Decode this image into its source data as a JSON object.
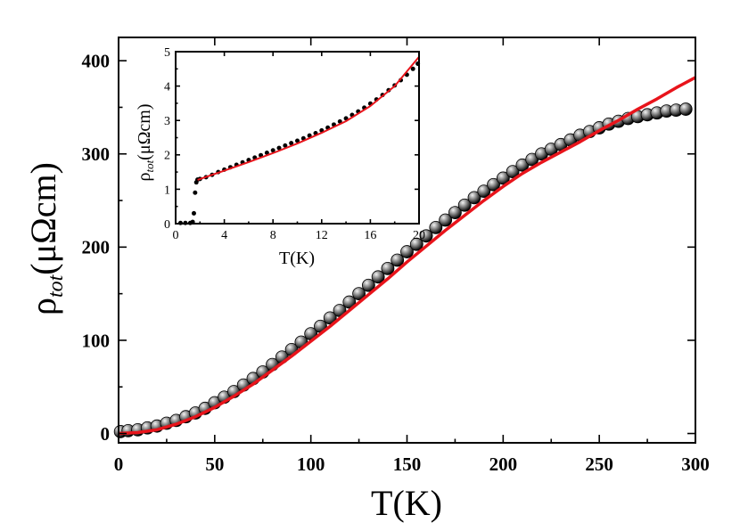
{
  "chart_data": [
    {
      "id": "main",
      "type": "scatter",
      "xlabel": "T(K)",
      "ylabel_main": "ρ",
      "ylabel_sub": "tot",
      "ylabel_unit": "(μΩcm)",
      "xlim": [
        0,
        300
      ],
      "ylim": [
        -10,
        425
      ],
      "xticks": [
        0,
        50,
        100,
        150,
        200,
        250,
        300
      ],
      "yticks": [
        0,
        100,
        200,
        300,
        400
      ],
      "series": [
        {
          "kind": "markers",
          "color": "#000000",
          "x": [
            1,
            5,
            10,
            15,
            20,
            25,
            30,
            35,
            40,
            45,
            50,
            55,
            60,
            65,
            70,
            75,
            80,
            85,
            90,
            95,
            100,
            105,
            110,
            115,
            120,
            125,
            130,
            135,
            140,
            145,
            150,
            155,
            160,
            165,
            170,
            175,
            180,
            185,
            190,
            195,
            200,
            205,
            210,
            215,
            220,
            225,
            230,
            235,
            240,
            245,
            250,
            255,
            260,
            265,
            270,
            275,
            280,
            285,
            290,
            295
          ],
          "y": [
            2,
            3,
            4,
            6,
            8,
            11,
            14,
            18,
            22,
            27,
            33,
            39,
            45,
            52,
            59,
            66,
            74,
            82,
            90,
            98,
            107,
            115,
            124,
            132,
            141,
            150,
            159,
            168,
            177,
            186,
            195,
            203,
            212,
            221,
            229,
            237,
            245,
            253,
            260,
            267,
            274,
            281,
            288,
            294,
            300,
            305,
            310,
            315,
            320,
            324,
            328,
            332,
            335,
            338,
            340,
            342,
            344,
            346,
            347,
            348
          ]
        },
        {
          "kind": "line",
          "color": "#e8141b",
          "x": [
            0,
            10,
            20,
            30,
            40,
            50,
            60,
            70,
            80,
            90,
            100,
            110,
            120,
            130,
            140,
            150,
            160,
            170,
            180,
            190,
            200,
            210,
            220,
            230,
            240,
            250,
            260,
            270,
            280,
            290,
            300
          ],
          "y": [
            0,
            1,
            4,
            10,
            18,
            28,
            40,
            53,
            68,
            83,
            99,
            115,
            132,
            149,
            166,
            184,
            201,
            218,
            234,
            250,
            265,
            279,
            291,
            302,
            313,
            325,
            336,
            348,
            359,
            371,
            382
          ]
        }
      ]
    },
    {
      "id": "inset",
      "type": "scatter",
      "xlabel": "T(K)",
      "ylabel_main": "ρ",
      "ylabel_sub": "tot",
      "ylabel_unit": "(μΩcm)",
      "xlim": [
        0,
        20
      ],
      "ylim": [
        0,
        5
      ],
      "xticks": [
        0,
        4,
        8,
        12,
        16,
        20
      ],
      "yticks": [
        0,
        1,
        2,
        3,
        4,
        5
      ],
      "series": [
        {
          "kind": "markers",
          "color": "#000000",
          "x": [
            0.4,
            0.8,
            1.2,
            1.4,
            1.5,
            1.6,
            1.7,
            1.8,
            2.0,
            2.5,
            3,
            3.5,
            4,
            4.5,
            5,
            5.5,
            6,
            6.5,
            7,
            7.5,
            8,
            8.5,
            9,
            9.5,
            10,
            10.5,
            11,
            11.5,
            12,
            12.5,
            13,
            13.5,
            14,
            14.5,
            15,
            15.5,
            16,
            16.5,
            17,
            17.5,
            18,
            18.5,
            19,
            19.5,
            19.9
          ],
          "y": [
            0.02,
            0.02,
            0.02,
            0.05,
            0.3,
            0.9,
            1.2,
            1.28,
            1.3,
            1.35,
            1.42,
            1.5,
            1.57,
            1.64,
            1.71,
            1.78,
            1.85,
            1.92,
            1.99,
            2.06,
            2.13,
            2.2,
            2.27,
            2.34,
            2.41,
            2.48,
            2.56,
            2.63,
            2.71,
            2.79,
            2.88,
            2.97,
            3.06,
            3.16,
            3.26,
            3.37,
            3.49,
            3.61,
            3.74,
            3.88,
            4.02,
            4.17,
            4.33,
            4.5,
            4.65
          ]
        },
        {
          "kind": "line",
          "color": "#e8141b",
          "x": [
            1.8,
            3,
            4,
            6,
            8,
            10,
            12,
            14,
            16,
            18,
            20
          ],
          "y": [
            1.27,
            1.42,
            1.54,
            1.79,
            2.05,
            2.33,
            2.64,
            2.98,
            3.42,
            4.0,
            4.85
          ]
        }
      ]
    }
  ]
}
